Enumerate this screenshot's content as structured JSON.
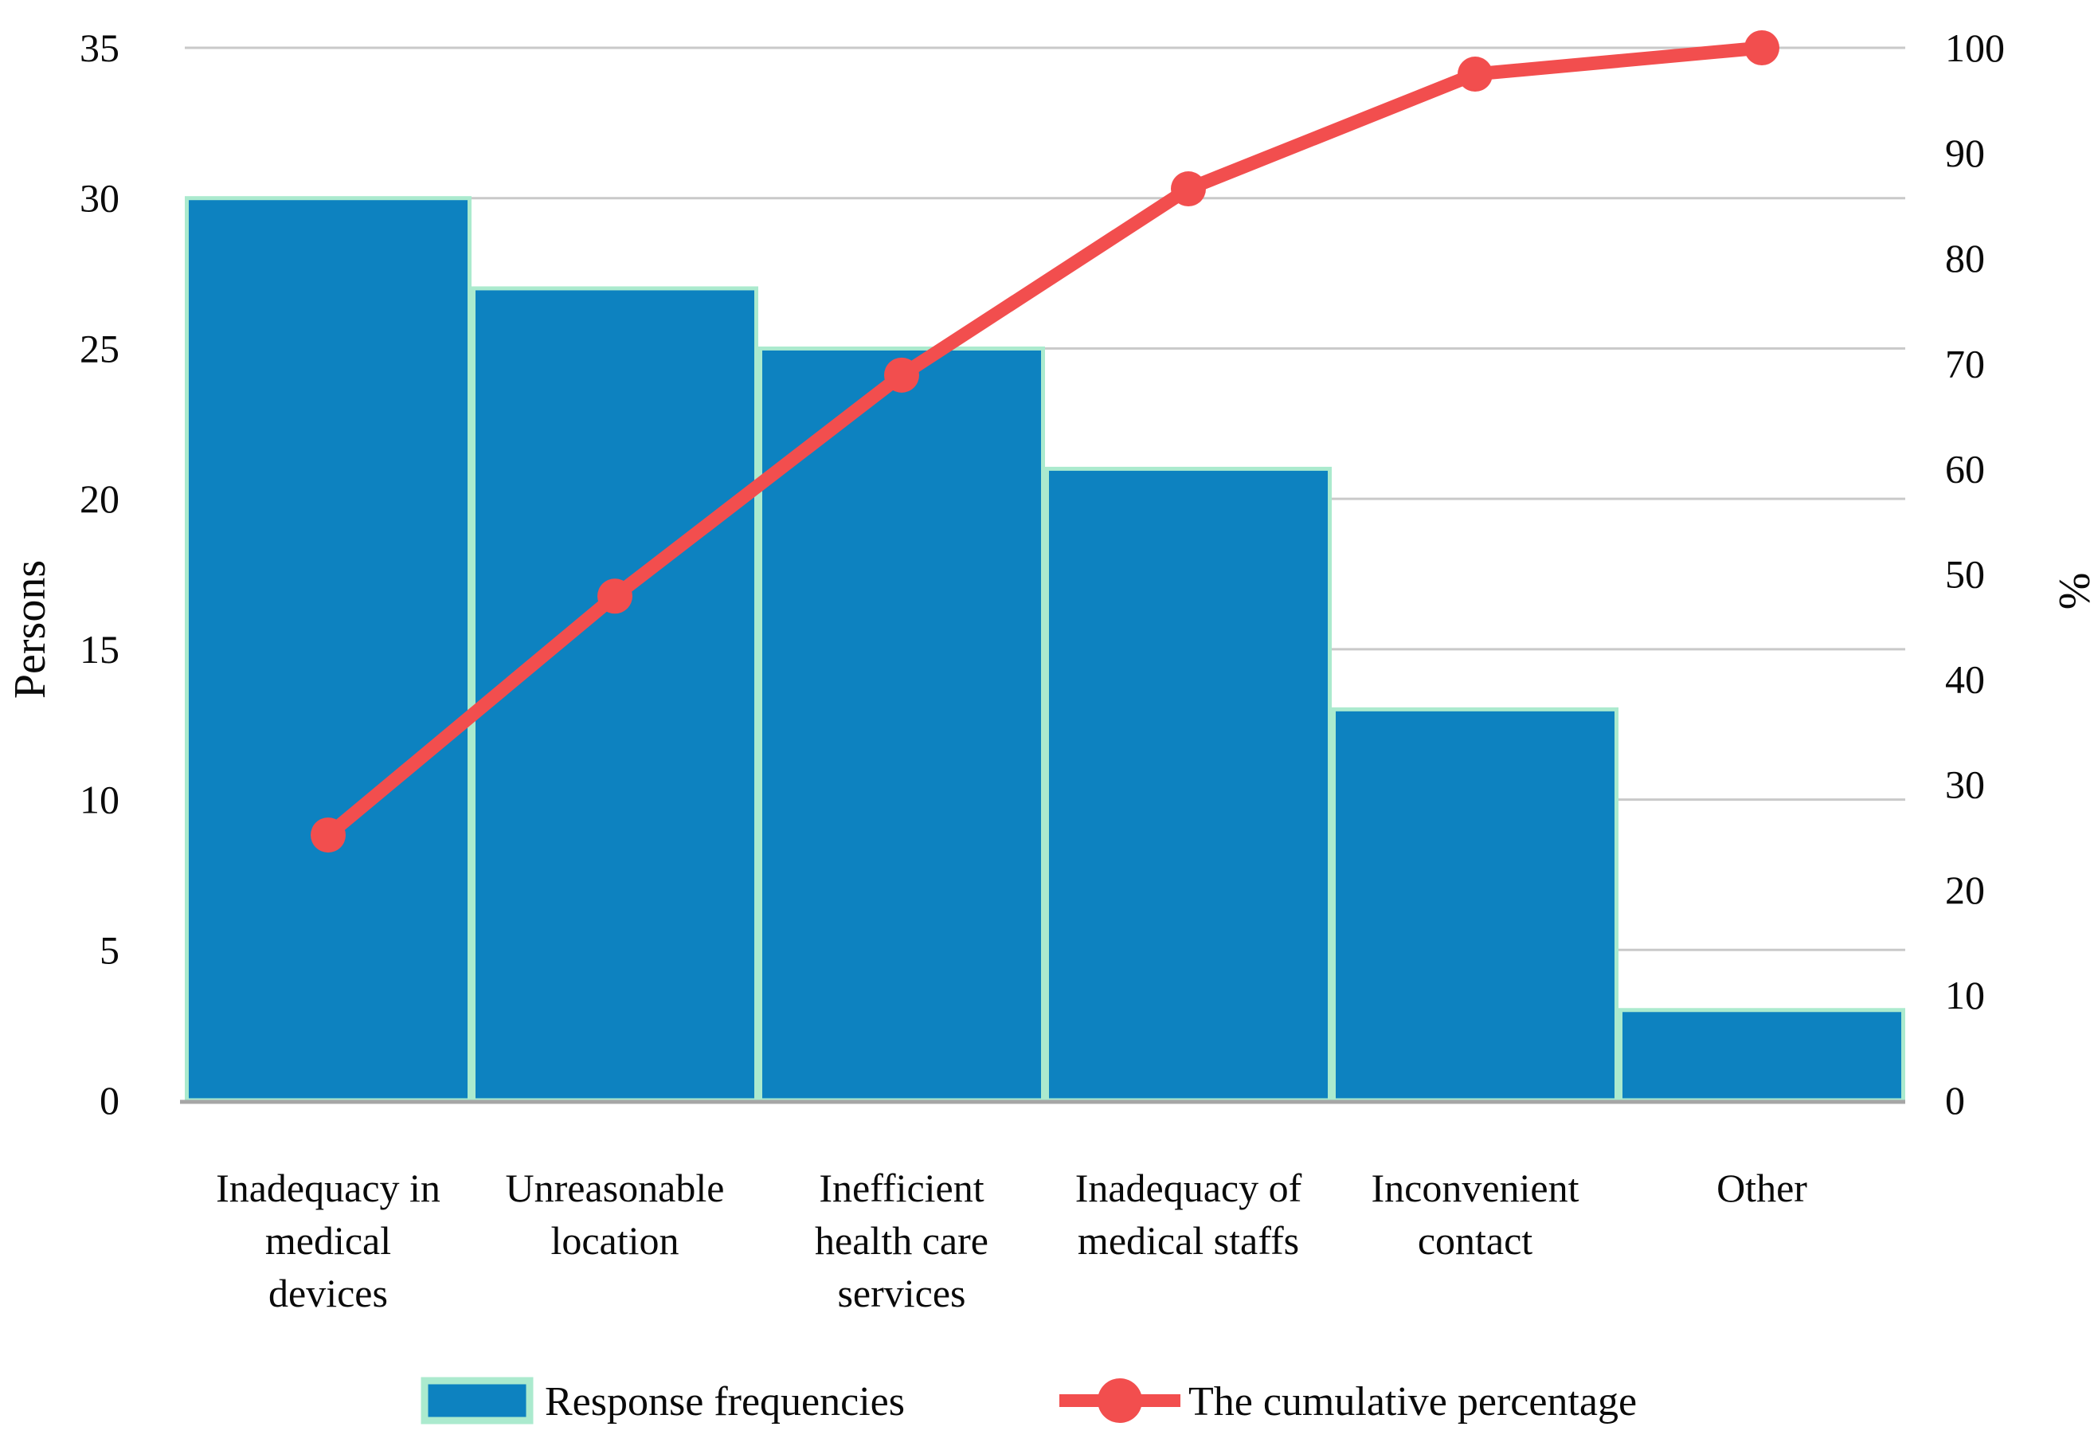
{
  "chart_data": {
    "type": "bar",
    "subtype": "pareto (bar + cumulative line, dual axis)",
    "title": "",
    "categories": [
      "Inadequacy in medical devices",
      "Unreasonable location",
      "Inefficient health care services",
      "Inadequacy of medical staffs",
      "Inconvenient contact",
      "Other"
    ],
    "category_label_lines": [
      [
        "Inadequacy in",
        "medical",
        "devices"
      ],
      [
        "Unreasonable",
        "location"
      ],
      [
        "Inefficient",
        "health care",
        "services"
      ],
      [
        "Inadequacy of",
        "medical staffs"
      ],
      [
        "Inconvenient",
        "contact"
      ],
      [
        "Other"
      ]
    ],
    "series": [
      {
        "name": "Response frequencies",
        "type": "bar",
        "axis": "left",
        "values": [
          30,
          27,
          25,
          21,
          13,
          3
        ],
        "color": "#0D82C0",
        "border_color": "#ABEACE"
      },
      {
        "name": "The cumulative percentage",
        "type": "line",
        "axis": "right",
        "values": [
          25.2,
          47.9,
          68.9,
          86.6,
          97.5,
          100
        ],
        "color": "#F24E4E"
      }
    ],
    "left_axis": {
      "title": "Persons",
      "min": 0,
      "max": 35,
      "tick_step": 5,
      "tick_labels": [
        "0",
        "5",
        "10",
        "15",
        "20",
        "25",
        "30",
        "35"
      ]
    },
    "right_axis": {
      "title": "%",
      "min": 0,
      "max": 100,
      "tick_step": 10,
      "tick_labels": [
        "0",
        "10",
        "20",
        "30",
        "40",
        "50",
        "60",
        "70",
        "80",
        "90",
        "100"
      ]
    },
    "grid": {
      "horizontal": true,
      "color": "#C9C9C9",
      "axis_line_color": "#A6A6A6"
    },
    "legend": {
      "position": "bottom",
      "entries": [
        "Response frequencies",
        "The cumulative percentage"
      ]
    },
    "background": "#FFFFFF"
  }
}
